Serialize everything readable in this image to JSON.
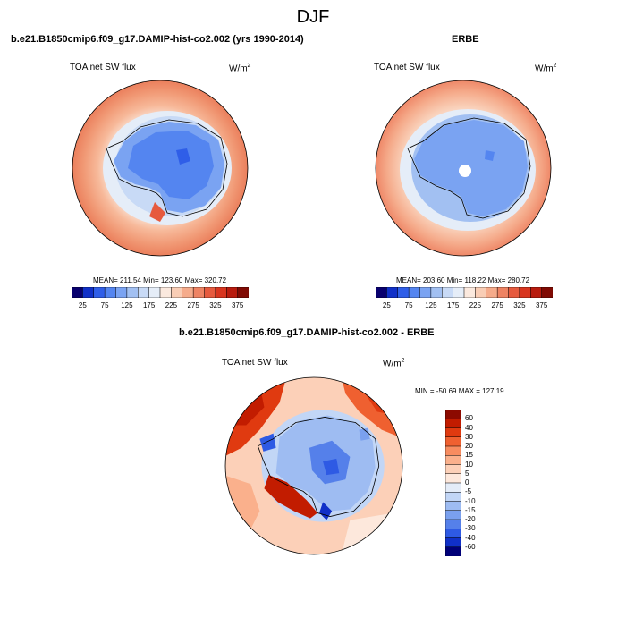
{
  "figure": {
    "season": "DJF",
    "model_title": "b.e21.B1850cmip6.f09_g17.DAMIP-hist-co2.002 (yrs 1990-2014)",
    "obs_title": "ERBE",
    "diff_title": "b.e21.B1850cmip6.f09_g17.DAMIP-hist-co2.002 - ERBE",
    "variable": "TOA net SW flux",
    "units_base": "W/m",
    "units_exp": "2"
  },
  "panels": {
    "model": {
      "mean": "211.54",
      "min": "123.60",
      "max": "320.72",
      "stats_text": "MEAN= 211.54  Min= 123.60  Max= 320.72"
    },
    "obs": {
      "mean": "203.60",
      "min": "118.22",
      "max": "280.72",
      "stats_text": "MEAN= 203.60  Min= 118.22  Max= 280.72"
    },
    "diff": {
      "min": "-50.69",
      "max": "127.19",
      "stats_text": "MIN = -50.69 MAX = 127.19"
    }
  },
  "colorbars": {
    "abs_ticks": [
      "25",
      "75",
      "125",
      "175",
      "225",
      "275",
      "325",
      "375"
    ],
    "abs_colors": [
      "#08006e",
      "#1030c8",
      "#2f5ee8",
      "#5485f0",
      "#7aa3f2",
      "#a2c0f2",
      "#c8daf6",
      "#e5edf8",
      "#fbe9de",
      "#f9cdb5",
      "#f5ab8b",
      "#ee8363",
      "#e65a3e",
      "#d8351f",
      "#b81b0e",
      "#800a03"
    ],
    "diff_ticks": [
      "60",
      "40",
      "30",
      "20",
      "15",
      "10",
      "5",
      "0",
      "-5",
      "-10",
      "-15",
      "-20",
      "-30",
      "-40",
      "-60"
    ],
    "diff_colors": [
      "#8c0a00",
      "#c21c00",
      "#e03a10",
      "#ef6030",
      "#f78c60",
      "#fab08c",
      "#fcd0b8",
      "#fde8dc",
      "#e4ecf8",
      "#c2d6f6",
      "#9ebcf2",
      "#7aa0ee",
      "#5580ea",
      "#2e5ae4",
      "#1030c8",
      "#000078"
    ]
  }
}
